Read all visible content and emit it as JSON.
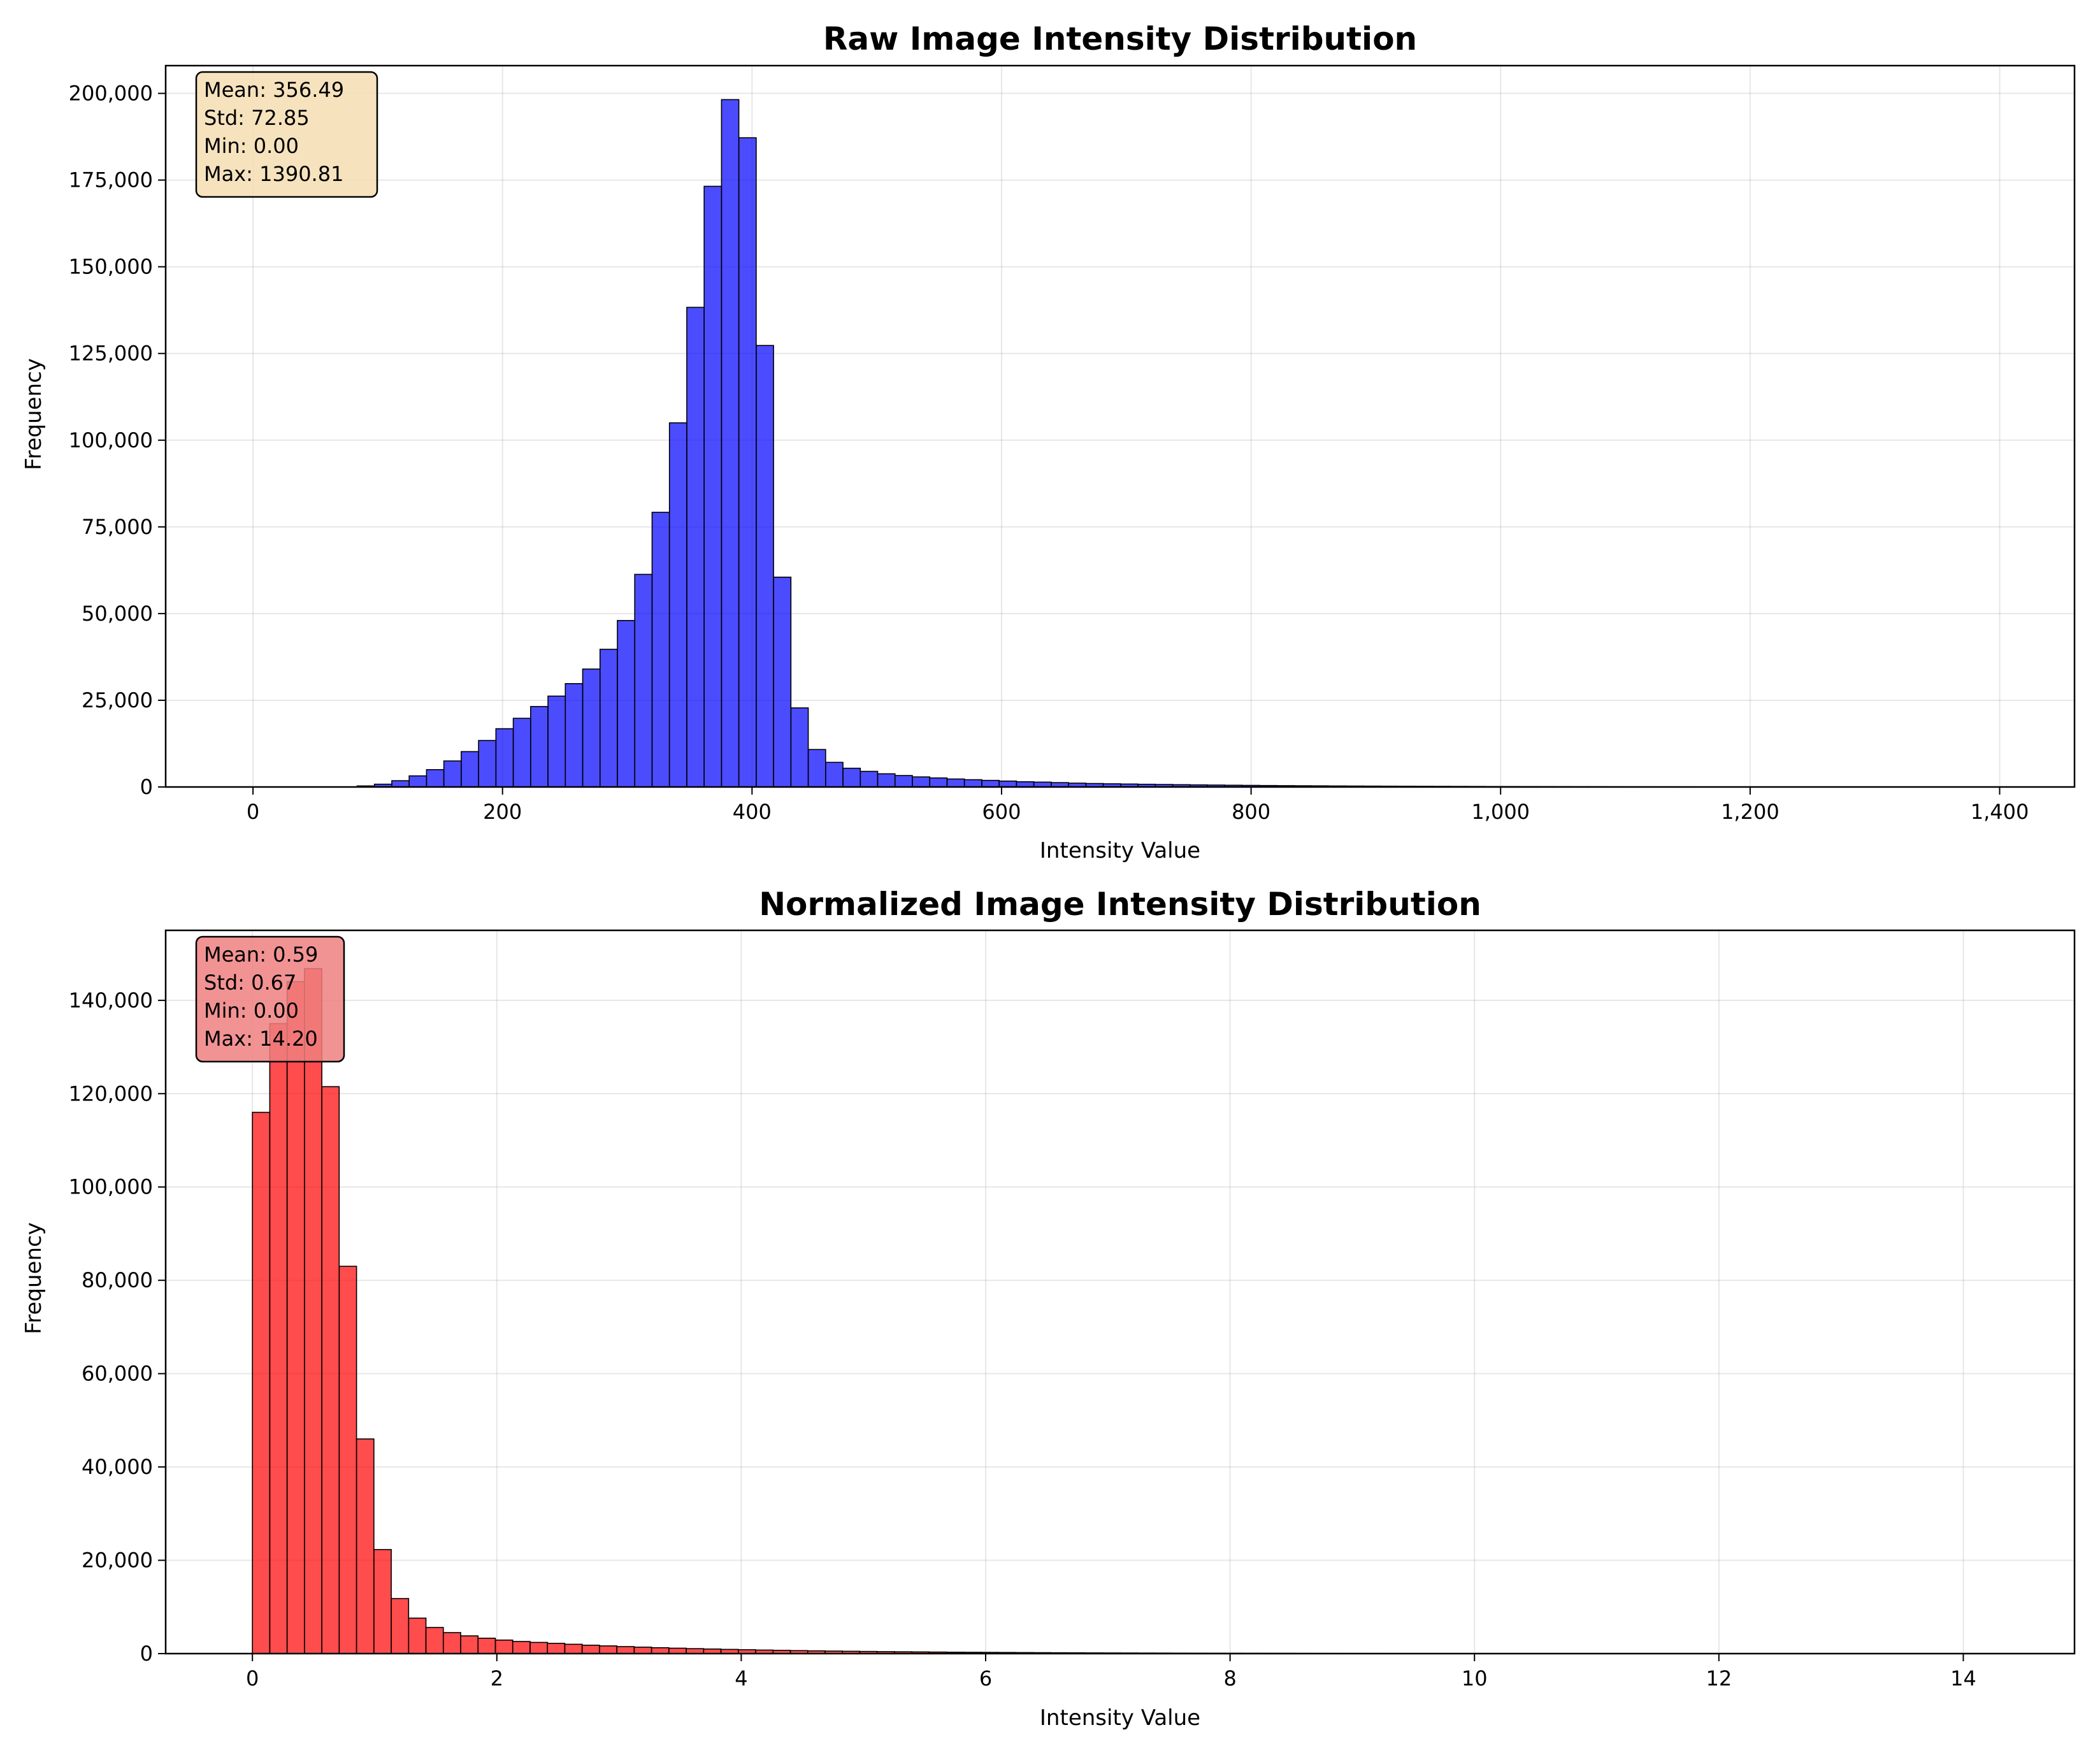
{
  "chart_data": [
    {
      "type": "bar",
      "title": "Raw Image Intensity Distribution",
      "xlabel": "Intensity Value",
      "ylabel": "Frequency",
      "xlim": [
        -70,
        1460
      ],
      "ylim": [
        0,
        208000
      ],
      "xticks": [
        0,
        200,
        400,
        600,
        800,
        1000,
        1200,
        1400
      ],
      "yticks": [
        0,
        25000,
        50000,
        75000,
        100000,
        125000,
        150000,
        175000,
        200000
      ],
      "grid": true,
      "bar_color": "#0000ff",
      "bin_width": 13.9081,
      "bin_start": 0,
      "values": [
        0,
        0,
        0,
        0,
        0,
        0,
        300,
        800,
        1800,
        3200,
        5000,
        7500,
        10200,
        13400,
        16800,
        19800,
        23200,
        26200,
        29800,
        34000,
        39700,
        48000,
        61300,
        79200,
        105000,
        138300,
        173200,
        198200,
        187200,
        127300,
        60500,
        22800,
        10800,
        7100,
        5400,
        4500,
        3800,
        3300,
        2900,
        2600,
        2300,
        2100,
        1900,
        1700,
        1500,
        1400,
        1250,
        1100,
        1000,
        920,
        850,
        780,
        720,
        660,
        600,
        550,
        500,
        460,
        420,
        380,
        350,
        320,
        290,
        270,
        250,
        230,
        210,
        190,
        175,
        160,
        145,
        130,
        120,
        110,
        100,
        90,
        80,
        70,
        60,
        55,
        50,
        45,
        40,
        35,
        30,
        25,
        20,
        18,
        15,
        12,
        10,
        8,
        6,
        5,
        4,
        3,
        2,
        2,
        1,
        1
      ],
      "stats": {
        "mean": "Mean: 356.49",
        "std": "Std: 72.85",
        "min": "Min: 0.00",
        "max": "Max: 1390.81",
        "box_color": "#f5deb3"
      }
    },
    {
      "type": "bar",
      "title": "Normalized Image Intensity Distribution",
      "xlabel": "Intensity Value",
      "ylabel": "Frequency",
      "xlim": [
        -0.71,
        14.91
      ],
      "ylim": [
        0,
        155000
      ],
      "xticks": [
        0,
        2,
        4,
        6,
        8,
        10,
        12,
        14
      ],
      "yticks": [
        0,
        20000,
        40000,
        60000,
        80000,
        100000,
        120000,
        140000
      ],
      "grid": true,
      "bar_color": "#ff0000",
      "bin_width": 0.142,
      "bin_start": 0,
      "values": [
        116000,
        135000,
        144000,
        146800,
        121500,
        83000,
        46000,
        22300,
        11800,
        7600,
        5600,
        4500,
        3800,
        3300,
        2900,
        2600,
        2400,
        2200,
        2000,
        1800,
        1650,
        1500,
        1380,
        1260,
        1160,
        1060,
        980,
        900,
        830,
        760,
        700,
        640,
        590,
        540,
        500,
        460,
        420,
        390,
        360,
        330,
        300,
        280,
        260,
        240,
        220,
        200,
        180,
        165,
        150,
        140,
        130,
        120,
        110,
        100,
        90,
        82,
        75,
        68,
        62,
        56,
        50,
        45,
        40,
        36,
        32,
        28,
        25,
        22,
        20,
        18,
        16,
        14,
        12,
        10,
        9,
        8,
        7,
        6,
        5,
        5,
        4,
        4,
        3,
        3,
        2,
        2,
        2,
        2,
        1,
        1,
        1,
        1,
        1,
        1,
        1,
        1,
        1,
        1,
        1,
        1
      ],
      "stats": {
        "mean": "Mean: 0.59",
        "std": "Std: 0.67",
        "min": "Min: 0.00",
        "max": "Max: 14.20",
        "box_color": "#f08080"
      }
    }
  ]
}
